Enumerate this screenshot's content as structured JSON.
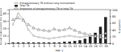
{
  "chart_data": {
    "type": "bar",
    "xlabel": "Age, y",
    "ylabel": "Annual incidence/100,000 persons",
    "y2label": "% proportion",
    "x": [
      0,
      1,
      2,
      3,
      4,
      5,
      6,
      7,
      8,
      9,
      10,
      11,
      12,
      13,
      14,
      15,
      16,
      17,
      18
    ],
    "xlim": [
      -0.8,
      18.8
    ],
    "xticks": [
      0,
      1,
      2,
      3,
      4,
      5,
      6,
      7,
      8,
      9,
      10,
      11,
      12,
      13,
      14,
      15,
      16,
      17,
      18
    ],
    "ylim": [
      0,
      45
    ],
    "yticks": [
      0,
      10,
      20,
      30,
      40
    ],
    "y2lim": [
      0,
      100
    ],
    "y2ticks": [
      0,
      20,
      40,
      60,
      80,
      100
    ],
    "grid": false,
    "legend": "top",
    "series": [
      {
        "name": "Extrapulmonary TB without lung involvement",
        "type": "line",
        "color": "#888888",
        "marker": "circle",
        "line_style": "solid",
        "values": [
          25,
          40,
          32,
          18,
          10,
          8,
          7,
          6,
          7,
          8,
          9,
          10,
          9,
          8,
          9,
          10,
          10,
          11,
          13
        ]
      },
      {
        "name": "Total TB",
        "type": "bar",
        "color": "#222222",
        "values": [
          1,
          1,
          1,
          1,
          1,
          1,
          1,
          1,
          1,
          1,
          2,
          2,
          3,
          4,
          6,
          9,
          14,
          22,
          35
        ]
      },
      {
        "name": "Proportion of extrapulmonary TB to total TB",
        "type": "line",
        "axis": "y2",
        "color": "#555555",
        "marker": "triangle",
        "line_style": "dashed",
        "values": [
          70,
          75,
          68,
          55,
          45,
          40,
          38,
          36,
          42,
          38,
          40,
          45,
          38,
          32,
          28,
          25,
          20,
          18,
          15
        ]
      }
    ]
  }
}
